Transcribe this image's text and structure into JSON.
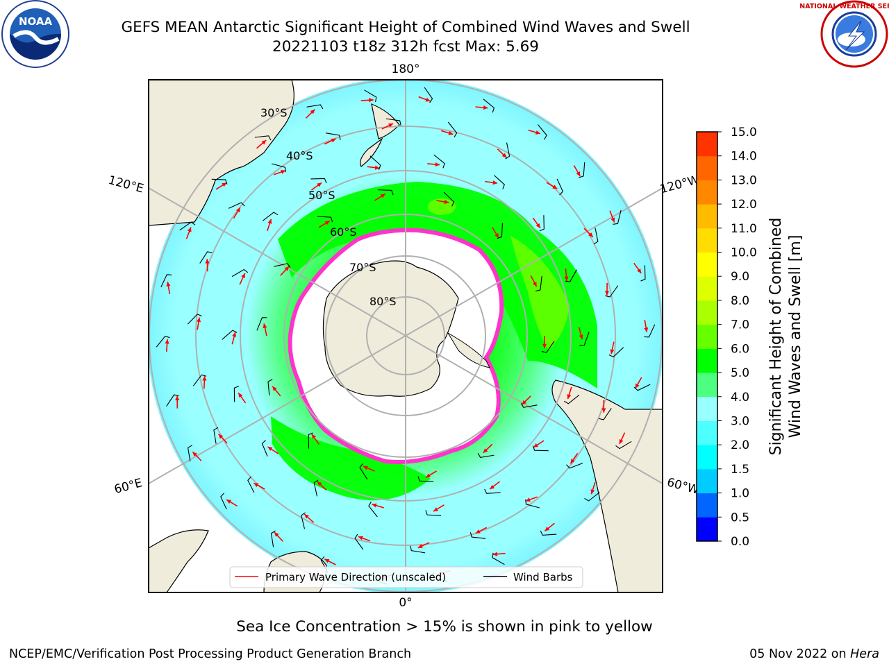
{
  "title_line1": "GEFS MEAN Antarctic Significant Height of Combined Wind Waves and Swell",
  "title_line2": "20221103 t18z 312h fcst   Max: 5.69",
  "logos": {
    "noaa_text": "NOAA",
    "nws_text": "NATIONAL WEATHER SERVICE"
  },
  "map": {
    "longitude_labels": {
      "top": "180°",
      "bottom": "0°",
      "upper_left": "120°E",
      "upper_right": "120°W",
      "lower_left": "60°E",
      "lower_right": "60°W"
    },
    "latitude_labels": [
      "30°S",
      "40°S",
      "50°S",
      "60°S",
      "70°S",
      "80°S"
    ],
    "legend": {
      "wave_direction": "Primary Wave Direction (unscaled)",
      "wind_barbs": "Wind Barbs"
    }
  },
  "colorbar": {
    "label_line1": "Significant Height of Combined",
    "label_line2": "Wind Waves and Swell [m]",
    "ticks": [
      "0.0",
      "0.5",
      "1.0",
      "1.5",
      "2.0",
      "3.0",
      "4.0",
      "5.0",
      "6.0",
      "7.0",
      "8.0",
      "9.0",
      "10.0",
      "11.0",
      "12.0",
      "13.0",
      "14.0",
      "15.0"
    ],
    "colors": [
      "#0000ff",
      "#0066ff",
      "#00ccff",
      "#00ffff",
      "#4dffff",
      "#99ffff",
      "#4dff80",
      "#00ff00",
      "#66ff00",
      "#aaff00",
      "#ddff00",
      "#ffff00",
      "#ffdd00",
      "#ffbb00",
      "#ff8800",
      "#ff6600",
      "#ff3300",
      "#ff0000"
    ]
  },
  "colors": {
    "land": "#efecdc",
    "ice": "#ffffff",
    "sea_ice_edge": "#ff33cc",
    "wave_arrow": "#ff0000",
    "grid": "#b0b0b0"
  },
  "caption": "Sea Ice Concentration > 15% is shown in pink to yellow",
  "footer_left": "NCEP/EMC/Verification Post Processing Product Generation Branch",
  "footer_date": "05 Nov 2022 on ",
  "footer_machine": "Hera"
}
